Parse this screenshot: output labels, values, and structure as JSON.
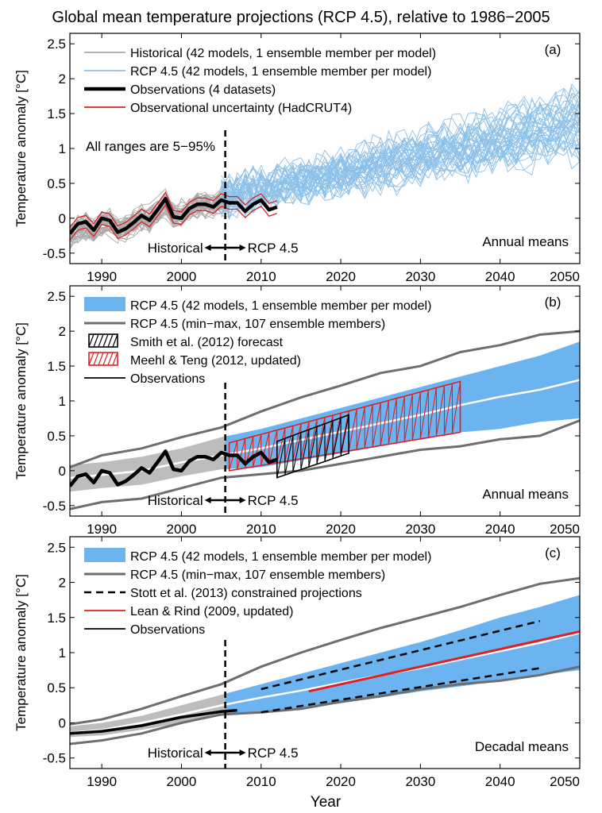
{
  "figure": {
    "title": "Global mean temperature projections (RCP 4.5), relative to 1986−2005",
    "xlabel": "Year"
  },
  "colors": {
    "historical": "#a9a9a9",
    "rcp": "#8cc0e8",
    "rcp_band": "#6cb4f0",
    "minmax": "#6e6e6e",
    "observations": "#000000",
    "red": "#e02020",
    "white": "#ffffff"
  },
  "chart_data": [
    {
      "type": "line",
      "panel_label": "(a)",
      "ylabel": "Temperature anomaly  [°C]",
      "xlim": [
        1986,
        2050
      ],
      "ylim": [
        -0.65,
        2.65
      ],
      "xticks": [
        1990,
        2000,
        2010,
        2020,
        2030,
        2040,
        2050
      ],
      "yticks": [
        -0.5,
        0,
        0.5,
        1,
        1.5,
        2,
        2.5
      ],
      "ytick_labels": [
        "-0.5",
        "0",
        "0.5",
        "1",
        "1.5",
        "2",
        "2.5"
      ],
      "legend": [
        {
          "label": "Historical (42 models, 1 ensemble member per model)",
          "style": "line",
          "color": "#a9a9a9"
        },
        {
          "label": "RCP 4.5 (42 models, 1 ensemble member per model)",
          "style": "line",
          "color": "#8cc0e8"
        },
        {
          "label": "Observations (4 datasets)",
          "style": "thick",
          "color": "#000000"
        },
        {
          "label": "Observational uncertainty (HadCRUT4)",
          "style": "line",
          "color": "#e02020"
        }
      ],
      "annotations": {
        "range_note": "All ranges are 5−95%",
        "means": "Annual means",
        "historical": "Historical",
        "rcp": "RCP 4.5"
      },
      "split_year": 2005.5,
      "ensemble": {
        "historical_members": 42,
        "rcp_members": 42,
        "historical_years": [
          1986,
          2006
        ],
        "rcp_years": [
          2005,
          2050
        ]
      },
      "observations": {
        "x": [
          1986,
          1987,
          1988,
          1989,
          1990,
          1991,
          1992,
          1993,
          1994,
          1995,
          1996,
          1997,
          1998,
          1999,
          2000,
          2001,
          2002,
          2003,
          2004,
          2005,
          2006,
          2007,
          2008,
          2009,
          2010,
          2011,
          2012
        ],
        "y": [
          -0.22,
          -0.08,
          -0.05,
          -0.17,
          0.0,
          -0.03,
          -0.2,
          -0.15,
          -0.06,
          0.04,
          -0.03,
          0.12,
          0.28,
          0.02,
          0.0,
          0.14,
          0.2,
          0.2,
          0.16,
          0.26,
          0.22,
          0.22,
          0.1,
          0.2,
          0.26,
          0.12,
          0.16
        ]
      },
      "obs_uncertainty": {
        "lower": -0.09,
        "upper": 0.09
      }
    },
    {
      "type": "area",
      "panel_label": "(b)",
      "ylabel": "Temperature anomaly  [°C]",
      "xlim": [
        1986,
        2050
      ],
      "ylim": [
        -0.65,
        2.65
      ],
      "xticks": [
        1990,
        2000,
        2010,
        2020,
        2030,
        2040,
        2050
      ],
      "yticks": [
        -0.5,
        0,
        0.5,
        1,
        1.5,
        2,
        2.5
      ],
      "ytick_labels": [
        "-0.5",
        "0",
        "0.5",
        "1",
        "1.5",
        "2",
        "2.5"
      ],
      "legend": [
        {
          "label": "RCP 4.5 (42 models, 1 ensemble member per model)",
          "style": "patch",
          "color": "#6cb4f0"
        },
        {
          "label": "RCP 4.5 (min−max, 107 ensemble members)",
          "style": "line",
          "color": "#6e6e6e"
        },
        {
          "label": "Smith et al. (2012) forecast",
          "style": "hatch",
          "color": "#000000"
        },
        {
          "label": "Meehl & Teng (2012, updated)",
          "style": "hatch",
          "color": "#e02020"
        },
        {
          "label": "Observations",
          "style": "line",
          "color": "#000000"
        }
      ],
      "annotations": {
        "means": "Annual means",
        "historical": "Historical",
        "rcp": "RCP 4.5"
      },
      "split_year": 2005.5,
      "band_5_95": {
        "x": [
          1986,
          1990,
          1995,
          2000,
          2005,
          2010,
          2015,
          2020,
          2025,
          2030,
          2035,
          2040,
          2045,
          2050
        ],
        "lower": [
          -0.3,
          -0.25,
          -0.2,
          -0.08,
          0.02,
          0.05,
          0.15,
          0.25,
          0.35,
          0.45,
          0.55,
          0.6,
          0.7,
          0.75
        ],
        "upper": [
          0.08,
          0.12,
          0.2,
          0.32,
          0.48,
          0.6,
          0.75,
          0.9,
          1.05,
          1.2,
          1.35,
          1.5,
          1.65,
          1.85
        ],
        "median": [
          -0.1,
          -0.06,
          0.0,
          0.12,
          0.22,
          0.32,
          0.44,
          0.56,
          0.68,
          0.8,
          0.94,
          1.06,
          1.16,
          1.3
        ]
      },
      "min_max": {
        "x": [
          1986,
          1990,
          1995,
          2000,
          2005,
          2010,
          2015,
          2020,
          2025,
          2030,
          2035,
          2040,
          2045,
          2050
        ],
        "min": [
          -0.55,
          -0.45,
          -0.4,
          -0.25,
          -0.1,
          -0.05,
          0.0,
          0.1,
          0.2,
          0.3,
          0.35,
          0.45,
          0.5,
          0.72
        ],
        "max": [
          0.05,
          0.22,
          0.32,
          0.48,
          0.62,
          0.85,
          1.05,
          1.22,
          1.4,
          1.5,
          1.7,
          1.8,
          1.95,
          2.0
        ]
      },
      "smith_2012": {
        "x": [
          2012,
          2021
        ],
        "lower": [
          -0.1,
          0.25
        ],
        "upper": [
          0.42,
          0.8
        ]
      },
      "meehl_teng_2012": {
        "x": [
          2006,
          2035
        ],
        "lower": [
          0.0,
          0.55
        ],
        "upper": [
          0.4,
          1.28
        ]
      },
      "observations": {
        "x": [
          1986,
          1987,
          1988,
          1989,
          1990,
          1991,
          1992,
          1993,
          1994,
          1995,
          1996,
          1997,
          1998,
          1999,
          2000,
          2001,
          2002,
          2003,
          2004,
          2005,
          2006,
          2007,
          2008,
          2009,
          2010,
          2011,
          2012
        ],
        "y": [
          -0.22,
          -0.08,
          -0.05,
          -0.17,
          0.0,
          -0.03,
          -0.2,
          -0.15,
          -0.06,
          0.04,
          -0.03,
          0.12,
          0.28,
          0.02,
          0.0,
          0.14,
          0.2,
          0.2,
          0.16,
          0.26,
          0.22,
          0.22,
          0.1,
          0.2,
          0.26,
          0.12,
          0.16
        ]
      }
    },
    {
      "type": "area",
      "panel_label": "(c)",
      "ylabel": "Temperature anomaly  [°C]",
      "xlim": [
        1986,
        2050
      ],
      "ylim": [
        -0.65,
        2.65
      ],
      "xticks": [
        1990,
        2000,
        2010,
        2020,
        2030,
        2040,
        2050
      ],
      "yticks": [
        -0.5,
        0,
        0.5,
        1,
        1.5,
        2,
        2.5
      ],
      "ytick_labels": [
        "-0.5",
        "0",
        "0.5",
        "1",
        "1.5",
        "2",
        "2.5"
      ],
      "legend": [
        {
          "label": "RCP 4.5 (42 models, 1 ensemble member per model)",
          "style": "patch",
          "color": "#6cb4f0"
        },
        {
          "label": "RCP 4.5 (min−max, 107 ensemble members)",
          "style": "line",
          "color": "#6e6e6e"
        },
        {
          "label": "Stott et al. (2013) constrained projections",
          "style": "dashed",
          "color": "#000000"
        },
        {
          "label": "Lean & Rind (2009, updated)",
          "style": "line",
          "color": "#e02020"
        },
        {
          "label": "Observations",
          "style": "line",
          "color": "#000000"
        }
      ],
      "annotations": {
        "means": "Decadal means",
        "historical": "Historical",
        "rcp": "RCP 4.5"
      },
      "split_year": 2005.5,
      "band_5_95": {
        "x": [
          1986,
          1990,
          1995,
          2000,
          2005,
          2010,
          2015,
          2020,
          2025,
          2030,
          2035,
          2040,
          2045,
          2050
        ],
        "lower": [
          -0.2,
          -0.18,
          -0.1,
          0.0,
          0.1,
          0.14,
          0.2,
          0.28,
          0.36,
          0.45,
          0.52,
          0.6,
          0.68,
          0.75
        ],
        "upper": [
          -0.05,
          0.0,
          0.1,
          0.25,
          0.4,
          0.55,
          0.7,
          0.85,
          1.0,
          1.15,
          1.32,
          1.5,
          1.65,
          1.82
        ],
        "median": [
          -0.14,
          -0.1,
          0.0,
          0.12,
          0.25,
          0.36,
          0.46,
          0.57,
          0.68,
          0.78,
          0.9,
          1.02,
          1.14,
          1.28
        ]
      },
      "min_max": {
        "x": [
          1986,
          1990,
          1995,
          2000,
          2005,
          2010,
          2015,
          2020,
          2025,
          2030,
          2035,
          2040,
          2045,
          2050
        ],
        "min": [
          -0.3,
          -0.25,
          -0.15,
          0.0,
          0.12,
          0.15,
          0.2,
          0.3,
          0.38,
          0.48,
          0.55,
          0.6,
          0.68,
          0.8
        ],
        "max": [
          -0.02,
          0.05,
          0.2,
          0.38,
          0.55,
          0.8,
          1.0,
          1.18,
          1.35,
          1.5,
          1.65,
          1.82,
          1.98,
          2.06
        ]
      },
      "stott_2013": {
        "x": [
          2010,
          2045
        ],
        "lower": [
          0.15,
          0.78
        ],
        "upper": [
          0.48,
          1.45
        ]
      },
      "lean_rind_2009": {
        "x": [
          2016,
          2050
        ],
        "y": [
          0.45,
          1.3
        ]
      },
      "observations": {
        "x": [
          1986,
          1990,
          1995,
          2000,
          2005,
          2007
        ],
        "y": [
          -0.15,
          -0.12,
          -0.04,
          0.08,
          0.16,
          0.18
        ]
      }
    }
  ]
}
